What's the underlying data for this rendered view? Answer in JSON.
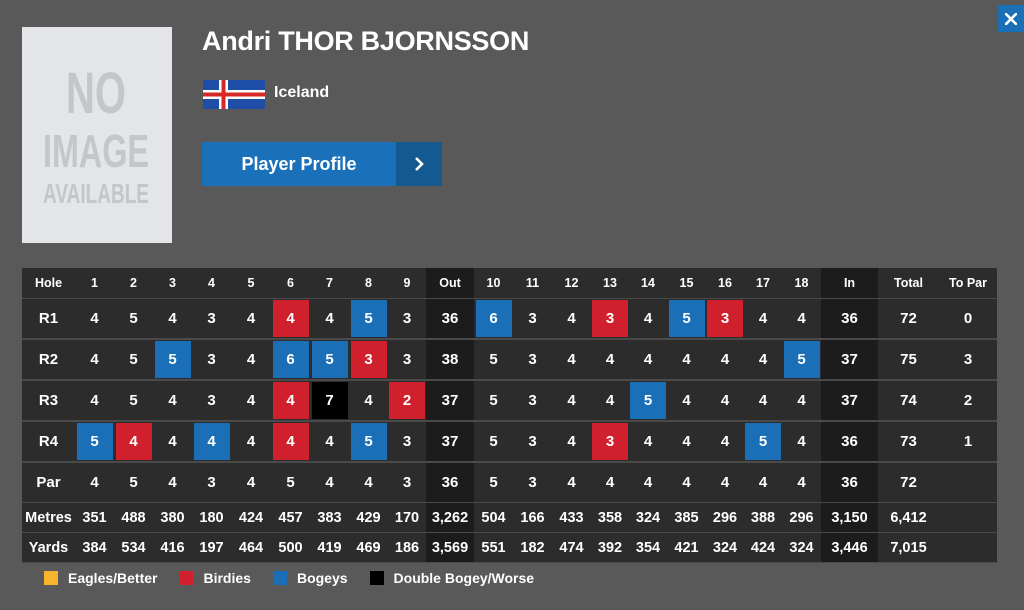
{
  "player": {
    "name": "Andri THOR BJORNSSON",
    "country": "Iceland",
    "photo_text": [
      "NO",
      "IMAGE",
      "AVAILABLE"
    ]
  },
  "profile_button": {
    "label": "Player Profile"
  },
  "colors": {
    "birdie": "#d0202e",
    "bogey": "#1b6fb7",
    "double_bogey": "#000000",
    "eagle": "#f7b52d",
    "button": "#1b71b9"
  },
  "scorecard": {
    "headers": {
      "hole": "Hole",
      "out": "Out",
      "in": "In",
      "total": "Total",
      "to_par": "To Par"
    },
    "holes_front": [
      "1",
      "2",
      "3",
      "4",
      "5",
      "6",
      "7",
      "8",
      "9"
    ],
    "holes_back": [
      "10",
      "11",
      "12",
      "13",
      "14",
      "15",
      "16",
      "17",
      "18"
    ],
    "rounds": [
      {
        "label": "R1",
        "scores": [
          "4",
          "5",
          "4",
          "3",
          "4",
          "4",
          "4",
          "5",
          "3",
          "6",
          "3",
          "4",
          "3",
          "4",
          "5",
          "3",
          "4",
          "4"
        ],
        "marks": [
          "",
          "",
          "",
          "",
          "",
          "birdie",
          "",
          "bogey",
          "",
          "bogey",
          "",
          "",
          "birdie",
          "",
          "bogey",
          "birdie",
          "",
          ""
        ],
        "out": "36",
        "in": "36",
        "total": "72",
        "to_par": "0"
      },
      {
        "label": "R2",
        "scores": [
          "4",
          "5",
          "5",
          "3",
          "4",
          "6",
          "5",
          "3",
          "3",
          "5",
          "3",
          "4",
          "4",
          "4",
          "4",
          "4",
          "4",
          "5"
        ],
        "marks": [
          "",
          "",
          "bogey",
          "",
          "",
          "bogey",
          "bogey",
          "birdie",
          "",
          "",
          "",
          "",
          "",
          "",
          "",
          "",
          "",
          "bogey"
        ],
        "out": "38",
        "in": "37",
        "total": "75",
        "to_par": "3"
      },
      {
        "label": "R3",
        "scores": [
          "4",
          "5",
          "4",
          "3",
          "4",
          "4",
          "7",
          "4",
          "2",
          "5",
          "3",
          "4",
          "4",
          "5",
          "4",
          "4",
          "4",
          "4"
        ],
        "marks": [
          "",
          "",
          "",
          "",
          "",
          "birdie",
          "dbl",
          "",
          "birdie",
          "",
          "",
          "",
          "",
          "bogey",
          "",
          "",
          "",
          ""
        ],
        "out": "37",
        "in": "37",
        "total": "74",
        "to_par": "2"
      },
      {
        "label": "R4",
        "scores": [
          "5",
          "4",
          "4",
          "4",
          "4",
          "4",
          "4",
          "5",
          "3",
          "5",
          "3",
          "4",
          "3",
          "4",
          "4",
          "4",
          "5",
          "4"
        ],
        "marks": [
          "bogey",
          "birdie",
          "",
          "bogey",
          "",
          "birdie",
          "",
          "bogey",
          "",
          "",
          "",
          "",
          "birdie",
          "",
          "",
          "",
          "bogey",
          ""
        ],
        "out": "37",
        "in": "36",
        "total": "73",
        "to_par": "1"
      }
    ],
    "par": {
      "label": "Par",
      "values": [
        "4",
        "5",
        "4",
        "3",
        "4",
        "5",
        "4",
        "4",
        "3",
        "5",
        "3",
        "4",
        "4",
        "4",
        "4",
        "4",
        "4",
        "4"
      ],
      "out": "36",
      "in": "36",
      "total": "72"
    },
    "metres": {
      "label": "Metres",
      "values": [
        "351",
        "488",
        "380",
        "180",
        "424",
        "457",
        "383",
        "429",
        "170",
        "504",
        "166",
        "433",
        "358",
        "324",
        "385",
        "296",
        "388",
        "296"
      ],
      "out": "3,262",
      "in": "3,150",
      "total": "6,412"
    },
    "yards": {
      "label": "Yards",
      "values": [
        "384",
        "534",
        "416",
        "197",
        "464",
        "500",
        "419",
        "469",
        "186",
        "551",
        "182",
        "474",
        "392",
        "354",
        "421",
        "324",
        "424",
        "324"
      ],
      "out": "3,569",
      "in": "3,446",
      "total": "7,015"
    }
  },
  "legend": [
    {
      "label": "Eagles/Better",
      "color": "#f7b52d"
    },
    {
      "label": "Birdies",
      "color": "#d0202e"
    },
    {
      "label": "Bogeys",
      "color": "#1b6fb7"
    },
    {
      "label": "Double Bogey/Worse",
      "color": "#000000"
    }
  ]
}
